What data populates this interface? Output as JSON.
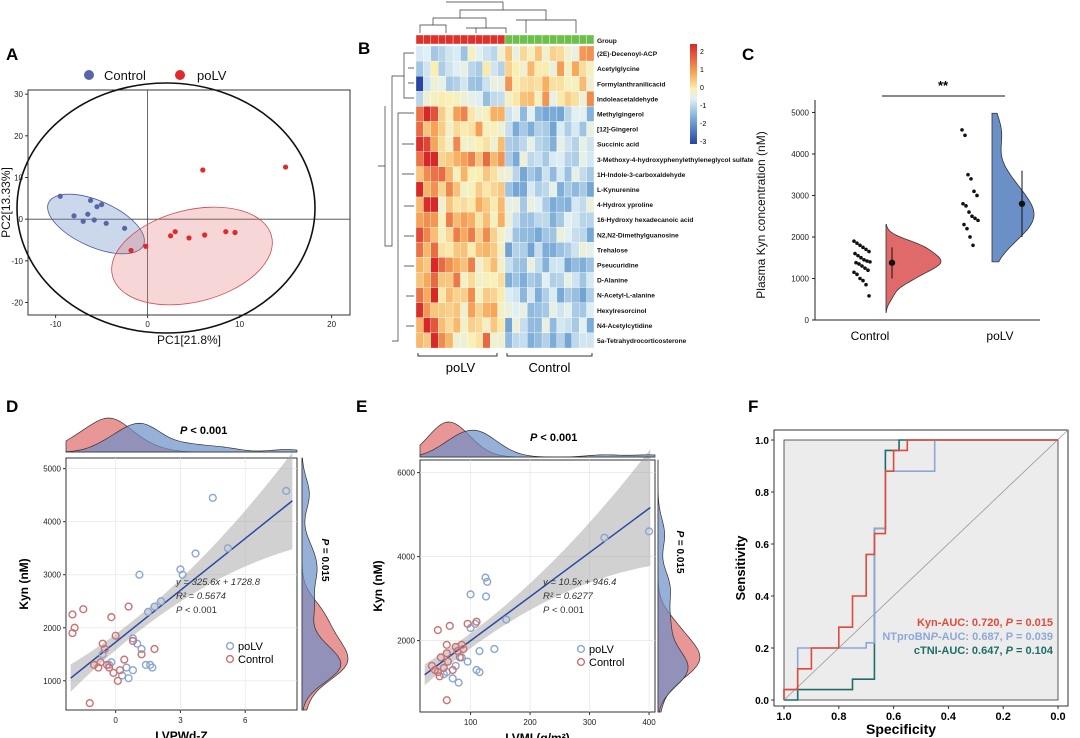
{
  "panels": {
    "A": "A",
    "B": "B",
    "C": "C",
    "D": "D",
    "E": "E",
    "F": "F"
  },
  "colors": {
    "control": "#5a64a8",
    "polv": "#e02a2a",
    "control_fill": "#6b8fc7",
    "polv_fill": "#e06a6a",
    "circle_polv": "#8aa6cf",
    "circle_control": "#cf7070",
    "fit": "#2848a8",
    "kyn": "#e04a3a",
    "ntprobnp": "#8ca8d8",
    "ctni": "#1d6e6a"
  },
  "chart_data": [
    {
      "panel": "A",
      "type": "scatter",
      "xlabel": "PC1[21.8%]",
      "ylabel": "PC2[13.33%]",
      "xlim": [
        -13,
        22
      ],
      "ylim": [
        -23,
        31
      ],
      "xticks": [
        -10,
        0,
        10,
        20
      ],
      "yticks": [
        -20,
        -10,
        0,
        10,
        20,
        30
      ],
      "legend": [
        "Control",
        "poLV"
      ],
      "series": [
        {
          "name": "Control",
          "points": [
            [
              -9.5,
              5.5
            ],
            [
              -6.2,
              4.5
            ],
            [
              -5.5,
              3.0
            ],
            [
              -5.0,
              3.5
            ],
            [
              -8.0,
              0.8
            ],
            [
              -6.5,
              1.2
            ],
            [
              -7.0,
              -0.5
            ],
            [
              -4.5,
              -1.0
            ],
            [
              -2.5,
              -2.2
            ],
            [
              -5.8,
              -0.2
            ]
          ]
        },
        {
          "name": "poLV",
          "points": [
            [
              -0.2,
              -6.5
            ],
            [
              -1.8,
              -7.5
            ],
            [
              2.5,
              -4.0
            ],
            [
              3.0,
              -3.0
            ],
            [
              4.5,
              -4.5
            ],
            [
              6.2,
              -3.8
            ],
            [
              8.5,
              -3.0
            ],
            [
              9.5,
              -3.2
            ],
            [
              6.0,
              11.8
            ],
            [
              15.0,
              12.5
            ]
          ]
        }
      ],
      "ellipses_note": "95% confidence ellipses"
    },
    {
      "panel": "B",
      "type": "heatmap",
      "group_row_label": "Group",
      "column_groups": [
        "poLV",
        "Control"
      ],
      "n_cols_per_group": 12,
      "scale": {
        "min": -3,
        "max": 2,
        "ticks": [
          2,
          1,
          0,
          -1,
          -2,
          -3
        ]
      },
      "rows": [
        "(2E)-Decenoyl-ACP",
        "Acetylglycine",
        "Formylanthranilicacid",
        "Indoleacetaldehyde",
        "Methylgingerol",
        "[12]-Gingerol",
        "Succinic acid",
        "3-Methoxy-4-hydroxyphenylethyleneglycol sulfate",
        "1H-Indole-3-carboxaldehyde",
        "L-Kynurenine",
        "4-Hydrox yproline",
        "16-Hydroxy hexadecanoic acid",
        "N2,N2-Dimethylguanosine",
        "Trehalose",
        "Pseucuridine",
        "D-Alanine",
        "N-Acetyl-L-alanine",
        "Hexylresorcinol",
        "N4-Acetylcytidine",
        "5a-Tetrahydrocorticosterone"
      ]
    },
    {
      "panel": "C",
      "type": "raincloud",
      "ylabel": "Plasma Kyn concentration (nM)",
      "ylim": [
        0,
        5300
      ],
      "yticks": [
        0,
        1000,
        2000,
        3000,
        4000,
        5000
      ],
      "categories": [
        "Control",
        "poLV"
      ],
      "significance": "**",
      "summary": [
        {
          "name": "Control",
          "mean": 1380,
          "lo": 1000,
          "hi": 1750
        },
        {
          "name": "poLV",
          "mean": 2800,
          "lo": 2000,
          "hi": 3600
        }
      ],
      "points": {
        "Control": [
          1900,
          1850,
          1800,
          1750,
          1700,
          1650,
          1600,
          1550,
          1500,
          1450,
          1420,
          1400,
          1380,
          1350,
          1300,
          1250,
          1200,
          1150,
          1100,
          1000,
          950,
          850,
          580
        ],
        "poLV": [
          4580,
          4450,
          3500,
          3400,
          3100,
          3000,
          2800,
          2750,
          2600,
          2500,
          2450,
          2400,
          2300,
          2200,
          2000,
          1800
        ]
      }
    },
    {
      "panel": "D",
      "type": "scatter",
      "xlabel": "LVPWd-Z",
      "ylabel": "Kyn (nM)",
      "xlim": [
        -2.3,
        8.4
      ],
      "ylim": [
        450,
        5200
      ],
      "xticks": [
        0,
        3,
        6
      ],
      "yticks": [
        1000,
        2000,
        3000,
        4000,
        5000
      ],
      "equation": "y = 325.6x + 1728.8",
      "r2": "R² = 0.5674",
      "p_fit": "P < 0.001",
      "p_top": "P < 0.001",
      "p_side": "P = 0.015",
      "fit": {
        "slope": 325.6,
        "intercept": 1728.8
      },
      "legend": [
        "poLV",
        "Control"
      ],
      "series": [
        {
          "name": "poLV",
          "points": [
            [
              7.9,
              4580
            ],
            [
              4.5,
              4450
            ],
            [
              3.7,
              3400
            ],
            [
              5.2,
              3500
            ],
            [
              3.0,
              3100
            ],
            [
              3.1,
              3000
            ],
            [
              1.1,
              3000
            ],
            [
              2.1,
              2500
            ],
            [
              1.8,
              2400
            ],
            [
              1.5,
              2300
            ],
            [
              0.8,
              1800
            ],
            [
              1.0,
              1700
            ],
            [
              1.2,
              1600
            ],
            [
              1.6,
              1300
            ],
            [
              1.7,
              1250
            ],
            [
              -0.3,
              1300
            ],
            [
              0.5,
              1250
            ],
            [
              0.3,
              1100
            ],
            [
              0.8,
              1200
            ],
            [
              -0.6,
              1500
            ],
            [
              -0.2,
              1350
            ],
            [
              1.4,
              1300
            ],
            [
              0.6,
              1050
            ]
          ]
        },
        {
          "name": "Control",
          "points": [
            [
              -2.0,
              2250
            ],
            [
              -1.9,
              2000
            ],
            [
              -1.5,
              2350
            ],
            [
              -2.0,
              1900
            ],
            [
              -0.2,
              2200
            ],
            [
              0.6,
              2400
            ],
            [
              0.0,
              1850
            ],
            [
              -0.6,
              1700
            ],
            [
              -0.5,
              1600
            ],
            [
              -1.0,
              1300
            ],
            [
              -0.8,
              1250
            ],
            [
              -0.4,
              1300
            ],
            [
              -0.1,
              1150
            ],
            [
              0.2,
              1200
            ],
            [
              1.2,
              1500
            ],
            [
              0.8,
              1750
            ],
            [
              1.8,
              1600
            ],
            [
              -1.2,
              580
            ],
            [
              0.4,
              1400
            ],
            [
              -0.7,
              1350
            ],
            [
              0.1,
              1000
            ],
            [
              -0.3,
              1250
            ]
          ]
        }
      ]
    },
    {
      "panel": "E",
      "type": "scatter",
      "xlabel": "LVMI (g/m²)",
      "ylabel": "Kyn (nM)",
      "xlim": [
        15,
        410
      ],
      "ylim": [
        300,
        6300
      ],
      "xticks": [
        100,
        200,
        300,
        400
      ],
      "yticks": [
        2000,
        4000,
        6000
      ],
      "equation": "y = 10.5x + 946.4",
      "r2": "R² = 0.6277",
      "p_fit": "P < 0.001",
      "p_top": "P < 0.001",
      "p_side": "P = 0.015",
      "fit": {
        "slope": 10.5,
        "intercept": 946.4
      },
      "legend": [
        "poLV",
        "Control"
      ],
      "series": [
        {
          "name": "poLV",
          "points": [
            [
              400,
              4600
            ],
            [
              325,
              4450
            ],
            [
              125,
              3500
            ],
            [
              128,
              3400
            ],
            [
              100,
              3100
            ],
            [
              126,
              3050
            ],
            [
              160,
              2500
            ],
            [
              108,
              2400
            ],
            [
              100,
              2300
            ],
            [
              140,
              1800
            ],
            [
              115,
              1750
            ],
            [
              85,
              1600
            ],
            [
              95,
              1500
            ],
            [
              110,
              1300
            ],
            [
              115,
              1250
            ],
            [
              75,
              1400
            ],
            [
              60,
              1250
            ],
            [
              70,
              1100
            ],
            [
              80,
              1000
            ],
            [
              55,
              1200
            ]
          ]
        },
        {
          "name": "Control",
          "points": [
            [
              45,
              2250
            ],
            [
              60,
              1900
            ],
            [
              65,
              2350
            ],
            [
              95,
              2400
            ],
            [
              110,
              2450
            ],
            [
              85,
              1900
            ],
            [
              75,
              1850
            ],
            [
              60,
              1700
            ],
            [
              50,
              1600
            ],
            [
              40,
              1300
            ],
            [
              45,
              1250
            ],
            [
              55,
              1350
            ],
            [
              70,
              1300
            ],
            [
              60,
              580
            ],
            [
              78,
              1750
            ],
            [
              82,
              1600
            ],
            [
              35,
              1400
            ],
            [
              48,
              1150
            ],
            [
              62,
              1500
            ],
            [
              88,
              1800
            ]
          ]
        }
      ]
    },
    {
      "panel": "F",
      "type": "line",
      "xlabel": "Specificity",
      "ylabel": "Sensitivity",
      "xlim": [
        1.0,
        0.0
      ],
      "ylim": [
        0.0,
        1.0
      ],
      "xticks": [
        1.0,
        0.8,
        0.6,
        0.4,
        0.2,
        0.0
      ],
      "yticks": [
        0.0,
        0.2,
        0.4,
        0.6,
        0.8,
        1.0
      ],
      "legend": [
        "Kyn-AUC: 0.720, P = 0.015",
        "NTproBNP-AUC: 0.687, P = 0.039",
        "cTNI-AUC: 0.647, P = 0.104"
      ],
      "series": [
        {
          "name": "Kyn-AUC: 0.720, P = 0.015",
          "points": [
            [
              1.0,
              0.0
            ],
            [
              1.0,
              0.04
            ],
            [
              0.95,
              0.04
            ],
            [
              0.95,
              0.12
            ],
            [
              0.9,
              0.12
            ],
            [
              0.9,
              0.2
            ],
            [
              0.8,
              0.2
            ],
            [
              0.8,
              0.28
            ],
            [
              0.75,
              0.28
            ],
            [
              0.75,
              0.4
            ],
            [
              0.7,
              0.4
            ],
            [
              0.7,
              0.56
            ],
            [
              0.67,
              0.56
            ],
            [
              0.67,
              0.64
            ],
            [
              0.63,
              0.64
            ],
            [
              0.63,
              0.88
            ],
            [
              0.6,
              0.88
            ],
            [
              0.6,
              0.96
            ],
            [
              0.55,
              0.96
            ],
            [
              0.55,
              1.0
            ],
            [
              0.0,
              1.0
            ]
          ]
        },
        {
          "name": "NTproBNP-AUC: 0.687, P = 0.039",
          "points": [
            [
              1.0,
              0.0
            ],
            [
              1.0,
              0.04
            ],
            [
              0.95,
              0.04
            ],
            [
              0.95,
              0.2
            ],
            [
              0.85,
              0.2
            ],
            [
              0.85,
              0.2
            ],
            [
              0.7,
              0.2
            ],
            [
              0.7,
              0.22
            ],
            [
              0.67,
              0.22
            ],
            [
              0.67,
              0.66
            ],
            [
              0.63,
              0.66
            ],
            [
              0.63,
              0.88
            ],
            [
              0.45,
              0.88
            ],
            [
              0.45,
              1.0
            ],
            [
              0.0,
              1.0
            ]
          ]
        },
        {
          "name": "cTNI-AUC: 0.647, P = 0.104",
          "points": [
            [
              1.0,
              0.0
            ],
            [
              0.95,
              0.0
            ],
            [
              0.95,
              0.04
            ],
            [
              0.85,
              0.04
            ],
            [
              0.85,
              0.04
            ],
            [
              0.75,
              0.04
            ],
            [
              0.75,
              0.08
            ],
            [
              0.67,
              0.08
            ],
            [
              0.67,
              0.66
            ],
            [
              0.63,
              0.66
            ],
            [
              0.63,
              0.96
            ],
            [
              0.58,
              0.96
            ],
            [
              0.58,
              1.0
            ],
            [
              0.0,
              1.0
            ]
          ]
        }
      ]
    }
  ]
}
